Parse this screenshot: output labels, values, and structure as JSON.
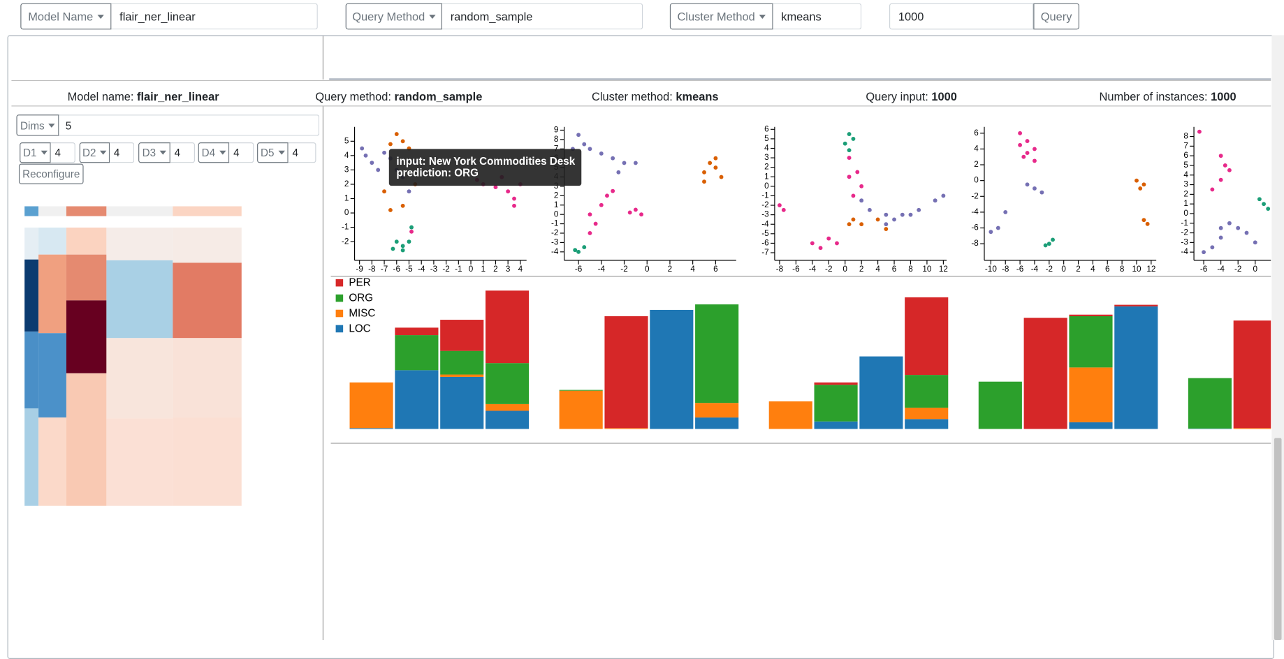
{
  "controls": {
    "model_name": {
      "label": "Model Name",
      "value": "flair_ner_linear"
    },
    "query_method": {
      "label": "Query Method",
      "value": "random_sample"
    },
    "cluster_method": {
      "label": "Cluster Method",
      "value": "kmeans"
    },
    "query_input": "1000",
    "query_button": "Query"
  },
  "summary": [
    {
      "label": "Model name:",
      "value": "flair_ner_linear"
    },
    {
      "label": "Query method:",
      "value": "random_sample"
    },
    {
      "label": "Cluster method:",
      "value": "kmeans"
    },
    {
      "label": "Query input:",
      "value": "1000"
    },
    {
      "label": "Number of instances:",
      "value": "1000"
    }
  ],
  "config": {
    "dims_label": "Dims",
    "dims": "5",
    "dimensions": [
      {
        "label": "D1",
        "value": "4"
      },
      {
        "label": "D2",
        "value": "4"
      },
      {
        "label": "D3",
        "value": "4"
      },
      {
        "label": "D4",
        "value": "4"
      },
      {
        "label": "D5",
        "value": "4"
      }
    ],
    "reconfigure": "Reconfigure"
  },
  "tooltip": {
    "input": "input: New York Commodities Desk",
    "prediction": "prediction: ORG"
  },
  "chart_data": [
    {
      "type": "scatter",
      "xlim": [
        -9.4,
        4.5
      ],
      "ylim": [
        -3.3,
        6
      ],
      "xticks": [
        -9,
        -8,
        -7,
        -6,
        -5,
        -4,
        -3,
        -2,
        -1,
        0,
        1,
        2,
        3,
        4
      ],
      "yticks": [
        -2,
        -1,
        0,
        1,
        2,
        3,
        4,
        5
      ],
      "series": [
        {
          "color": "#7570b3",
          "x": [
            -8.5,
            -8,
            -7.5,
            -7,
            -6,
            -5.5,
            -5,
            -4.5,
            -8.8,
            -6.5
          ],
          "y": [
            4,
            3.5,
            3,
            4.2,
            3,
            2.5,
            1.5,
            3.5,
            4.5,
            3.8
          ]
        },
        {
          "color": "#d95f02",
          "x": [
            -6,
            -5.5,
            -5,
            -6.5,
            -5.5,
            -6.5,
            -4.5,
            -7
          ],
          "y": [
            5.5,
            5,
            4.5,
            4.8,
            0.5,
            0.2,
            2,
            1.5
          ]
        },
        {
          "color": "#e7298a",
          "x": [
            1,
            2,
            3,
            3.5,
            4,
            3.5,
            2.5,
            0.5,
            -4.8
          ],
          "y": [
            2,
            1.8,
            1.5,
            1,
            2,
            0.5,
            2.5,
            2.3,
            -1.3
          ]
        },
        {
          "color": "#1b9e77",
          "x": [
            -6,
            -5.5,
            -5,
            -6.3,
            -4.8,
            -5.5
          ],
          "y": [
            -2,
            -2.3,
            -2,
            -2.5,
            -1,
            -2.6
          ]
        }
      ]
    },
    {
      "type": "scatter",
      "xlim": [
        -7.25,
        7.8
      ],
      "ylim": [
        -4.9,
        9.35
      ],
      "xticks": [
        -6,
        -4,
        -2,
        0,
        2,
        4,
        6
      ],
      "yticks": [
        -4,
        -3,
        -2,
        -1,
        0,
        1,
        2,
        3,
        4,
        5,
        6,
        7,
        8,
        9
      ],
      "series": [
        {
          "color": "#7570b3",
          "x": [
            -6,
            -5.5,
            -5,
            -4,
            -3,
            -2,
            -1,
            -2.5,
            -6.5
          ],
          "y": [
            8.5,
            7.5,
            7,
            6.5,
            6,
            5.5,
            5.5,
            4.5,
            7
          ]
        },
        {
          "color": "#e7298a",
          "x": [
            -5,
            -4,
            -3.5,
            -3,
            -4.5,
            -5,
            -1,
            -0.5,
            -1.5
          ],
          "y": [
            0,
            1,
            2,
            2.5,
            -1,
            -2,
            0.5,
            0,
            0.2
          ]
        },
        {
          "color": "#d95f02",
          "x": [
            5,
            6,
            5.5,
            6.5,
            5,
            6
          ],
          "y": [
            4.5,
            5,
            5.5,
            4,
            3.5,
            6
          ]
        },
        {
          "color": "#1b9e77",
          "x": [
            -6,
            -5.5,
            -6.3
          ],
          "y": [
            -4,
            -3.5,
            -3.8
          ]
        }
      ]
    },
    {
      "type": "scatter",
      "xlim": [
        -8.6,
        12.4
      ],
      "ylim": [
        -7.8,
        6.26
      ],
      "xticks": [
        -8,
        -6,
        -4,
        -2,
        0,
        2,
        4,
        6,
        8,
        10,
        12
      ],
      "yticks": [
        -7,
        -6,
        -5,
        -4,
        -3,
        -2,
        -1,
        0,
        1,
        2,
        3,
        4,
        5,
        6
      ],
      "series": [
        {
          "color": "#7570b3",
          "x": [
            5,
            6,
            7,
            8,
            9,
            11,
            12,
            5,
            2,
            3
          ],
          "y": [
            -3,
            -3.5,
            -3,
            -3,
            -2.5,
            -1.5,
            -1,
            -4,
            -1.5,
            -2.5
          ]
        },
        {
          "color": "#e7298a",
          "x": [
            -8,
            -7.5,
            -4,
            -3,
            -2,
            -1,
            0.5,
            1.5,
            1,
            2,
            0.5
          ],
          "y": [
            -2,
            -2.5,
            -6,
            -6.5,
            -5.5,
            -6,
            1,
            1.5,
            -1,
            0,
            3
          ]
        },
        {
          "color": "#1b9e77",
          "x": [
            0.5,
            1,
            0,
            0.5
          ],
          "y": [
            5.5,
            5,
            4.5,
            3.8
          ]
        },
        {
          "color": "#d95f02",
          "x": [
            1,
            2,
            4,
            5,
            0.5
          ],
          "y": [
            -3.5,
            -4,
            -3.5,
            -4.5,
            -4
          ]
        }
      ]
    },
    {
      "type": "scatter",
      "xlim": [
        -10.9,
        12.7
      ],
      "ylim": [
        -10.1,
        6.8
      ],
      "xticks": [
        -10,
        -8,
        -6,
        -4,
        -2,
        0,
        2,
        4,
        6,
        8,
        10,
        12
      ],
      "yticks": [
        -8,
        -6,
        -4,
        -2,
        0,
        2,
        4,
        6
      ],
      "series": [
        {
          "color": "#e7298a",
          "x": [
            -6,
            -5,
            -4,
            -6,
            -5.5,
            -4,
            -5
          ],
          "y": [
            6,
            5,
            4,
            4.5,
            3,
            2.5,
            3.5
          ]
        },
        {
          "color": "#7570b3",
          "x": [
            -5,
            -4,
            -3,
            -8,
            -9,
            -10
          ],
          "y": [
            -0.5,
            -1,
            -1.5,
            -4,
            -6,
            -6.5
          ]
        },
        {
          "color": "#1b9e77",
          "x": [
            -2,
            -1.5,
            -2.5
          ],
          "y": [
            -8,
            -7.5,
            -8.2
          ]
        },
        {
          "color": "#d95f02",
          "x": [
            10,
            11,
            10.5,
            11,
            11.5
          ],
          "y": [
            0,
            -0.5,
            -1,
            -5,
            -5.5
          ]
        }
      ]
    },
    {
      "type": "scatter",
      "xlim": [
        -7.14,
        12.9
      ],
      "ylim": [
        -4.85,
        9
      ],
      "xticks": [
        -6,
        -4,
        -2,
        0
      ],
      "yticks": [
        -4,
        -3,
        -2,
        -1,
        0,
        1,
        2,
        3,
        4,
        5,
        6,
        7,
        8
      ],
      "series": [
        {
          "color": "#e7298a",
          "x": [
            -6.5,
            -4,
            -3,
            -4,
            -5,
            -3.5
          ],
          "y": [
            8.5,
            6,
            4.5,
            3.5,
            2.5,
            5
          ]
        },
        {
          "color": "#7570b3",
          "x": [
            -6,
            -5,
            -4,
            -3,
            -2,
            -1,
            0,
            -4
          ],
          "y": [
            -4,
            -3.5,
            -2.5,
            -1,
            -1.5,
            -2,
            -3,
            -1.5
          ]
        },
        {
          "color": "#1b9e77",
          "x": [
            0.5,
            1,
            1.5
          ],
          "y": [
            1.5,
            1,
            0.5
          ]
        }
      ]
    },
    {
      "type": "stacked_bar",
      "legend": "top-left",
      "series": [
        {
          "name": "PER",
          "color": "#d62728",
          "values": [
            [
              0,
              19,
              79,
              184
            ],
            [
              0,
              284,
              0,
              0
            ],
            [
              0,
              6,
              0,
              197
            ],
            [
              0,
              282,
              4,
              4
            ],
            [
              0,
              273
            ]
          ]
        },
        {
          "name": "ORG",
          "color": "#2ca02c",
          "values": [
            [
              0,
              89,
              60,
              104
            ],
            [
              2,
              0,
              0,
              250
            ],
            [
              0,
              93,
              0,
              83
            ],
            [
              120,
              0,
              130,
              0
            ],
            [
              128,
              0
            ]
          ]
        },
        {
          "name": "MISC",
          "color": "#ff7f0e",
          "values": [
            [
              116,
              0,
              6,
              17
            ],
            [
              97,
              2,
              0,
              37
            ],
            [
              70,
              0,
              0,
              29
            ],
            [
              0,
              0,
              139,
              0
            ],
            [
              0,
              2
            ]
          ]
        },
        {
          "name": "LOC",
          "color": "#1f77b4",
          "values": [
            [
              2,
              149,
              132,
              46
            ],
            [
              0,
              0,
              302,
              29
            ],
            [
              0,
              19,
              184,
              25
            ],
            [
              0,
              0,
              17,
              311
            ],
            [
              1,
              0
            ]
          ]
        }
      ]
    }
  ]
}
